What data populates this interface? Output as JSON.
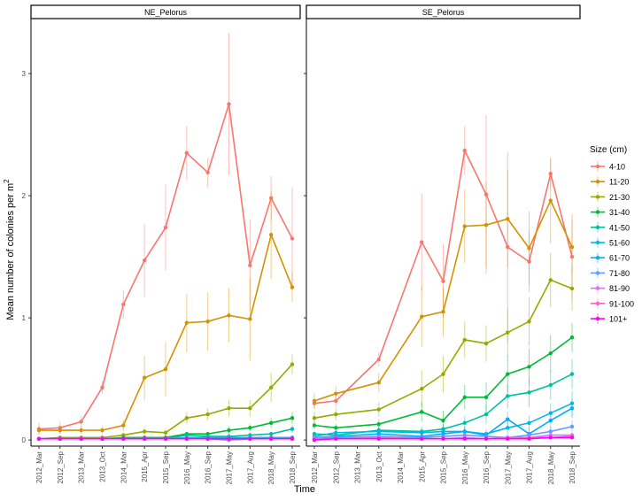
{
  "chart_data": {
    "type": "line",
    "x_label": "Time",
    "y_label_main": "Mean number of colonies per m",
    "y_label_sup": "2",
    "y_ticks": [
      0,
      1,
      2,
      3
    ],
    "ylim": [
      -0.05,
      3.45
    ],
    "grid": false,
    "legend_placement": "right",
    "legend_title": "Size (cm)",
    "categories": [
      "2012_Mar",
      "2012_Sep",
      "2013_Mar",
      "2013_Oct",
      "2014_Mar",
      "2015_Apr",
      "2015_Sep",
      "2016_May",
      "2016_Sep",
      "2017_May",
      "2017_Aug",
      "2018_May",
      "2018_Sep"
    ],
    "series_meta": [
      {
        "name": "4-10",
        "color": "#F8766D"
      },
      {
        "name": "11-20",
        "color": "#D39200"
      },
      {
        "name": "21-30",
        "color": "#93AA00"
      },
      {
        "name": "31-40",
        "color": "#00BA38"
      },
      {
        "name": "41-50",
        "color": "#00C19F"
      },
      {
        "name": "51-60",
        "color": "#00B9E3"
      },
      {
        "name": "61-70",
        "color": "#00ADFA"
      },
      {
        "name": "71-80",
        "color": "#619CFF"
      },
      {
        "name": "81-90",
        "color": "#DB72FB"
      },
      {
        "name": "91-100",
        "color": "#FF61C3"
      },
      {
        "name": "101+",
        "color": "#FF00FF"
      }
    ],
    "panels": [
      {
        "title": "NE_Pelorus",
        "series": [
          {
            "name": "4-10",
            "values": [
              0.09,
              0.1,
              0.15,
              0.43,
              1.11,
              1.47,
              1.74,
              2.35,
              2.19,
              2.75,
              1.43,
              1.98,
              1.65
            ],
            "errors": [
              0.05,
              0.05,
              0.05,
              0.05,
              0.12,
              0.3,
              0.35,
              0.22,
              0.12,
              0.58,
              0.38,
              0.18,
              0.42
            ]
          },
          {
            "name": "11-20",
            "values": [
              0.08,
              0.08,
              0.08,
              0.08,
              0.12,
              0.51,
              0.58,
              0.96,
              0.97,
              1.02,
              0.99,
              1.68,
              1.25
            ],
            "errors": [
              0.03,
              0.03,
              0.03,
              0.03,
              0.05,
              0.18,
              0.22,
              0.24,
              0.24,
              0.22,
              0.34,
              0.36,
              0.12
            ]
          },
          {
            "name": "21-30",
            "values": [
              0.01,
              0.02,
              0.02,
              0.02,
              0.04,
              0.07,
              0.06,
              0.18,
              0.21,
              0.26,
              0.26,
              0.43,
              0.62
            ],
            "errors": [
              0.01,
              0.01,
              0.01,
              0.01,
              0.02,
              0.03,
              0.03,
              0.05,
              0.05,
              0.07,
              0.07,
              0.12,
              0.08
            ]
          },
          {
            "name": "31-40",
            "values": [
              0.01,
              0.01,
              0.01,
              0.01,
              0.02,
              0.02,
              0.02,
              0.05,
              0.05,
              0.08,
              0.1,
              0.14,
              0.18
            ],
            "errors": [
              0.01,
              0.01,
              0.01,
              0.01,
              0.01,
              0.01,
              0.01,
              0.02,
              0.02,
              0.03,
              0.03,
              0.04,
              0.05
            ]
          },
          {
            "name": "41-50",
            "values": [
              0.01,
              0.01,
              0.01,
              0.01,
              0.01,
              0.01,
              0.01,
              0.04,
              0.03,
              0.03,
              0.04,
              0.05,
              0.09
            ],
            "errors": [
              0.01,
              0.01,
              0.01,
              0.01,
              0.01,
              0.01,
              0.01,
              0.01,
              0.01,
              0.01,
              0.02,
              0.02,
              0.03
            ]
          },
          {
            "name": "51-60",
            "values": [
              0.01,
              0.01,
              0.01,
              0.01,
              0.01,
              0.01,
              0.01,
              0.02,
              0.02,
              0.02,
              0.02,
              0.02,
              0.02
            ],
            "errors": [
              0.01,
              0.01,
              0.01,
              0.01,
              0.01,
              0.01,
              0.01,
              0.01,
              0.01,
              0.01,
              0.01,
              0.01,
              0.01
            ]
          },
          {
            "name": "61-70",
            "values": [
              0.01,
              0.01,
              0.01,
              0.01,
              0.01,
              0.01,
              0.01,
              0.01,
              0.01,
              0.0,
              0.01,
              0.01,
              0.01
            ],
            "errors": [
              0.01,
              0.01,
              0.01,
              0.01,
              0.01,
              0.01,
              0.01,
              0.01,
              0.01,
              0.01,
              0.01,
              0.01,
              0.01
            ]
          },
          {
            "name": "71-80",
            "values": [
              0.01,
              0.01,
              0.01,
              0.01,
              0.01,
              0.01,
              0.01,
              0.01,
              0.01,
              0.0,
              0.01,
              0.01,
              0.01
            ],
            "errors": [
              0.01,
              0.01,
              0.01,
              0.01,
              0.01,
              0.01,
              0.01,
              0.01,
              0.01,
              0.01,
              0.01,
              0.01,
              0.01
            ]
          },
          {
            "name": "81-90",
            "values": [
              0.01,
              0.01,
              0.01,
              0.01,
              0.01,
              0.01,
              0.01,
              0.01,
              0.01,
              0.01,
              0.01,
              0.01,
              0.01
            ],
            "errors": [
              0.0,
              0.0,
              0.0,
              0.0,
              0.0,
              0.0,
              0.0,
              0.0,
              0.0,
              0.0,
              0.0,
              0.0,
              0.0
            ]
          },
          {
            "name": "91-100",
            "values": [
              0.01,
              0.01,
              0.01,
              0.01,
              0.01,
              0.01,
              0.01,
              0.01,
              0.01,
              0.01,
              0.01,
              0.01,
              0.01
            ],
            "errors": [
              0.0,
              0.0,
              0.0,
              0.0,
              0.0,
              0.0,
              0.0,
              0.0,
              0.0,
              0.0,
              0.0,
              0.0,
              0.0
            ]
          },
          {
            "name": "101+",
            "values": [
              0.01,
              0.01,
              0.01,
              0.01,
              0.01,
              0.01,
              0.01,
              0.01,
              0.01,
              0.01,
              0.01,
              0.01,
              0.01
            ],
            "errors": [
              0.0,
              0.0,
              0.0,
              0.0,
              0.0,
              0.0,
              0.0,
              0.0,
              0.0,
              0.0,
              0.0,
              0.0,
              0.0
            ]
          }
        ]
      },
      {
        "title": "SE_Pelorus",
        "series": [
          {
            "name": "4-10",
            "values": [
              0.3,
              0.32,
              null,
              0.66,
              null,
              1.62,
              1.3,
              2.37,
              2.01,
              1.58,
              1.46,
              2.18,
              1.5
            ],
            "errors": [
              0.05,
              0.05,
              0.0,
              0.06,
              0.0,
              0.4,
              0.3,
              0.2,
              0.65,
              0.78,
              0.25,
              0.12,
              0.35
            ]
          },
          {
            "name": "11-20",
            "values": [
              0.32,
              0.38,
              null,
              0.47,
              null,
              1.01,
              1.05,
              1.75,
              1.76,
              1.81,
              1.57,
              1.96,
              1.58
            ],
            "errors": [
              0.06,
              0.06,
              0.0,
              0.08,
              0.0,
              0.25,
              0.2,
              0.3,
              0.35,
              0.4,
              0.3,
              0.35,
              0.22
            ]
          },
          {
            "name": "21-30",
            "values": [
              0.18,
              0.21,
              null,
              0.25,
              null,
              0.42,
              0.54,
              0.82,
              0.79,
              0.88,
              0.97,
              1.31,
              1.24
            ],
            "errors": [
              0.05,
              0.05,
              0.0,
              0.06,
              0.0,
              0.15,
              0.15,
              0.15,
              0.15,
              0.2,
              0.2,
              0.22,
              0.18
            ]
          },
          {
            "name": "31-40",
            "values": [
              0.12,
              0.1,
              null,
              0.13,
              null,
              0.23,
              0.16,
              0.35,
              0.35,
              0.54,
              0.6,
              0.71,
              0.84
            ],
            "errors": [
              0.03,
              0.03,
              0.0,
              0.04,
              0.0,
              0.08,
              0.08,
              0.1,
              0.12,
              0.15,
              0.15,
              0.15,
              0.12
            ]
          },
          {
            "name": "41-50",
            "values": [
              0.05,
              0.04,
              null,
              0.08,
              null,
              0.07,
              0.09,
              0.14,
              0.21,
              0.36,
              0.39,
              0.45,
              0.54
            ],
            "errors": [
              0.02,
              0.02,
              0.0,
              0.03,
              0.0,
              0.04,
              0.04,
              0.06,
              0.08,
              0.1,
              0.12,
              0.12,
              0.12
            ]
          },
          {
            "name": "51-60",
            "values": [
              0.03,
              0.06,
              null,
              0.07,
              null,
              0.06,
              0.07,
              0.07,
              0.05,
              0.1,
              0.14,
              0.22,
              0.3
            ],
            "errors": [
              0.02,
              0.02,
              0.0,
              0.03,
              0.0,
              0.03,
              0.03,
              0.04,
              0.04,
              0.06,
              0.06,
              0.08,
              0.1
            ]
          },
          {
            "name": "61-70",
            "values": [
              0.02,
              0.03,
              null,
              0.05,
              null,
              0.03,
              0.05,
              0.07,
              0.04,
              0.17,
              0.05,
              0.16,
              0.26
            ],
            "errors": [
              0.01,
              0.02,
              0.0,
              0.02,
              0.0,
              0.02,
              0.02,
              0.03,
              0.03,
              0.06,
              0.05,
              0.07,
              0.08
            ]
          },
          {
            "name": "71-80",
            "values": [
              0.02,
              0.02,
              null,
              0.03,
              null,
              0.02,
              0.03,
              0.04,
              0.03,
              0.02,
              0.04,
              0.07,
              0.11
            ],
            "errors": [
              0.01,
              0.01,
              0.0,
              0.02,
              0.0,
              0.02,
              0.02,
              0.02,
              0.02,
              0.02,
              0.03,
              0.04,
              0.05
            ]
          },
          {
            "name": "81-90",
            "values": [
              0.01,
              0.01,
              null,
              0.02,
              null,
              0.01,
              0.01,
              0.02,
              0.01,
              0.02,
              0.02,
              0.04,
              0.04
            ],
            "errors": [
              0.01,
              0.01,
              0.0,
              0.01,
              0.0,
              0.01,
              0.01,
              0.01,
              0.01,
              0.01,
              0.02,
              0.02,
              0.02
            ]
          },
          {
            "name": "91-100",
            "values": [
              0.01,
              0.01,
              null,
              0.01,
              null,
              0.01,
              0.01,
              0.01,
              0.01,
              0.01,
              0.02,
              0.02,
              0.03
            ],
            "errors": [
              0.0,
              0.0,
              0.0,
              0.0,
              0.0,
              0.0,
              0.0,
              0.0,
              0.0,
              0.0,
              0.01,
              0.01,
              0.01
            ]
          },
          {
            "name": "101+",
            "values": [
              0.0,
              0.01,
              null,
              0.01,
              null,
              0.01,
              0.01,
              0.01,
              0.01,
              0.01,
              0.01,
              0.02,
              0.02
            ],
            "errors": [
              0.0,
              0.0,
              0.0,
              0.0,
              0.0,
              0.0,
              0.0,
              0.0,
              0.0,
              0.0,
              0.0,
              0.01,
              0.01
            ]
          }
        ]
      }
    ]
  }
}
